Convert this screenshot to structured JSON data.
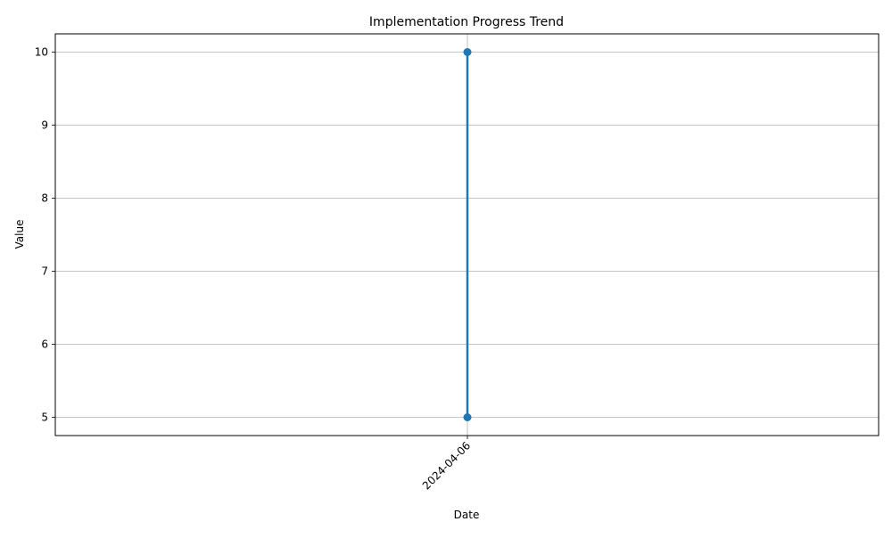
{
  "chart_data": {
    "type": "line",
    "title": "Implementation Progress Trend",
    "xlabel": "Date",
    "ylabel": "Value",
    "x": [
      "2024-04-06",
      "2024-04-06"
    ],
    "series": [
      {
        "values": [
          5,
          10
        ],
        "color": "#1f77b4"
      }
    ],
    "x_ticks": [
      "2024-04-06"
    ],
    "y_ticks": [
      5,
      6,
      7,
      8,
      9,
      10
    ],
    "ylim": [
      4.75,
      10.25
    ],
    "grid": true,
    "legend": "none"
  }
}
